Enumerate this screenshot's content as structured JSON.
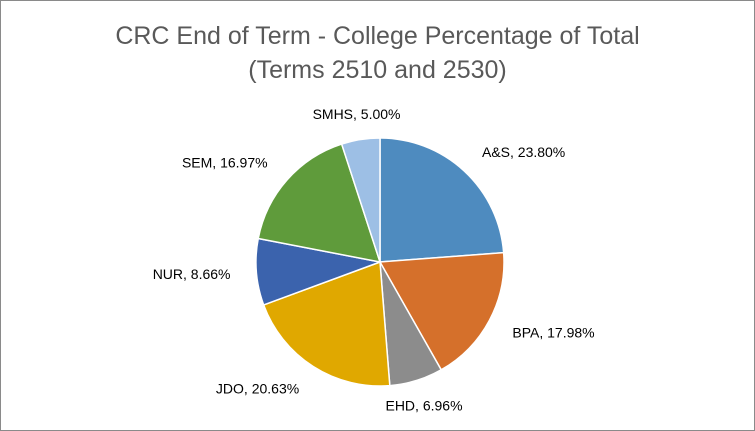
{
  "chart_data": {
    "type": "pie",
    "title": [
      "CRC End of Term - College Percentage of Total",
      "(Terms 2510 and 2530)"
    ],
    "categories": [
      "A&S",
      "BPA",
      "EHD",
      "JDO",
      "NUR",
      "SEM",
      "SMHS"
    ],
    "values": [
      23.8,
      17.98,
      6.96,
      20.63,
      8.66,
      16.97,
      5.0
    ],
    "labels": [
      "A&S, 23.80%",
      "BPA, 17.98%",
      "EHD, 6.96%",
      "JDO, 20.63%",
      "NUR, 8.66%",
      "SEM, 16.97%",
      "SMHS, 5.00%"
    ],
    "colors": [
      "#4e8bbf",
      "#d5702b",
      "#8c8c8c",
      "#e0a800",
      "#3b63ad",
      "#5f9b3b",
      "#9dbfe5"
    ],
    "start_angle": "12 o'clock, clockwise",
    "legend": "none"
  }
}
